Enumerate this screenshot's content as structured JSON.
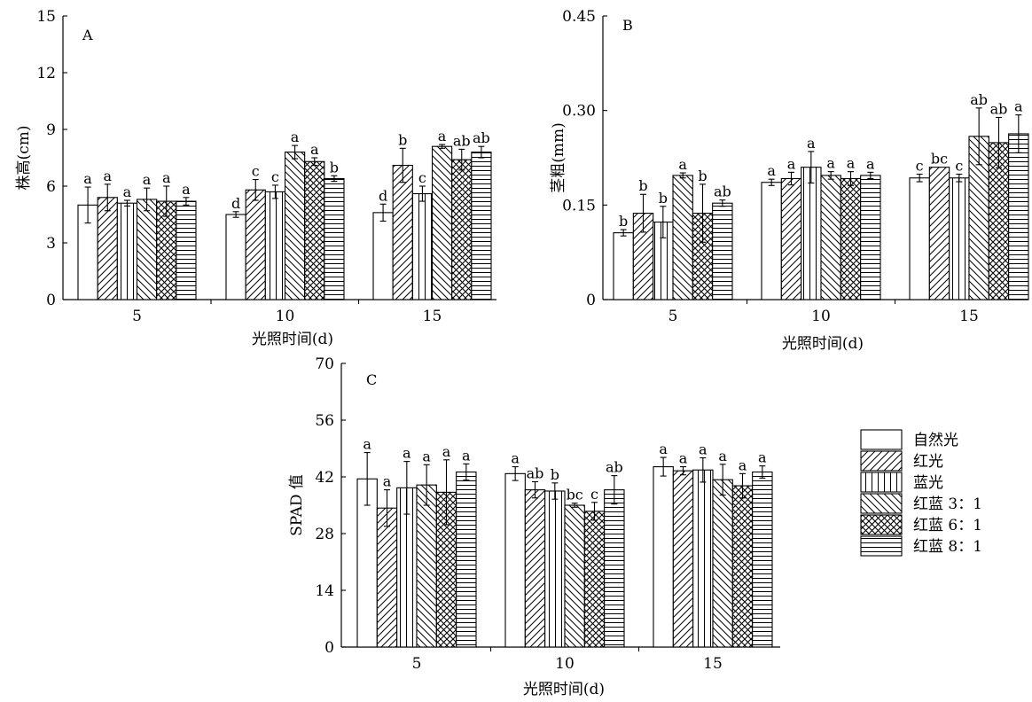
{
  "legend": {
    "items": [
      "自然光",
      "红光",
      "蓝光",
      "红蓝 3：1",
      "红蓝 6：1",
      "红蓝 8：1"
    ],
    "patterns": [
      "blank",
      "diag-right",
      "vertical",
      "diag-left",
      "crosshatch",
      "horizontal"
    ]
  },
  "colors": {
    "ink": "#000000",
    "bar_fill": "#ffffff"
  },
  "chart_data": [
    {
      "panel": "A",
      "type": "bar",
      "xlabel": "光照时间(d)",
      "ylabel": "株高(cm)",
      "ylim": [
        0,
        15
      ],
      "yticks": [
        0,
        3,
        6,
        9,
        12,
        15
      ],
      "categories": [
        "5",
        "10",
        "15"
      ],
      "series": [
        {
          "name": "自然光",
          "values": [
            5.0,
            4.5,
            4.6
          ],
          "errors": [
            0.95,
            0.15,
            0.45
          ],
          "letters": [
            "a",
            "d",
            "d"
          ]
        },
        {
          "name": "红光",
          "values": [
            5.4,
            5.8,
            7.1
          ],
          "errors": [
            0.7,
            0.55,
            0.9
          ],
          "letters": [
            "a",
            "c",
            "b"
          ]
        },
        {
          "name": "蓝光",
          "values": [
            5.1,
            5.7,
            5.6
          ],
          "errors": [
            0.15,
            0.35,
            0.4
          ],
          "letters": [
            "a",
            "c",
            "c"
          ]
        },
        {
          "name": "红蓝 3：1",
          "values": [
            5.3,
            7.8,
            8.1
          ],
          "errors": [
            0.6,
            0.35,
            0.1
          ],
          "letters": [
            "a",
            "a",
            "a"
          ]
        },
        {
          "name": "红蓝 6：1",
          "values": [
            5.2,
            7.3,
            7.4
          ],
          "errors": [
            0.8,
            0.2,
            0.55
          ],
          "letters": [
            "a",
            "a",
            "ab"
          ]
        },
        {
          "name": "红蓝 8：1",
          "values": [
            5.2,
            6.4,
            7.8
          ],
          "errors": [
            0.2,
            0.15,
            0.3
          ],
          "letters": [
            "a",
            "b",
            "ab"
          ]
        }
      ]
    },
    {
      "panel": "B",
      "type": "bar",
      "xlabel": "光照时间(d)",
      "ylabel": "茎粗(mm)",
      "ylim": [
        0,
        0.45
      ],
      "yticks": [
        "0",
        "0.15",
        "0.30",
        "0.45"
      ],
      "categories": [
        "5",
        "10",
        "15"
      ],
      "series": [
        {
          "name": "自然光",
          "values": [
            0.106,
            0.186,
            0.193
          ],
          "errors": [
            0.005,
            0.005,
            0.006
          ],
          "letters": [
            "b",
            "a",
            "c"
          ]
        },
        {
          "name": "红光",
          "values": [
            0.137,
            0.192,
            0.21
          ],
          "errors": [
            0.03,
            0.01,
            0.0
          ],
          "letters": [
            "b",
            "a",
            "bc"
          ]
        },
        {
          "name": "蓝光",
          "values": [
            0.123,
            0.21,
            0.193
          ],
          "errors": [
            0.025,
            0.025,
            0.006
          ],
          "letters": [
            "b",
            "a",
            "c"
          ]
        },
        {
          "name": "红蓝 3：1",
          "values": [
            0.197,
            0.197,
            0.259
          ],
          "errors": [
            0.004,
            0.006,
            0.045
          ],
          "letters": [
            "a",
            "a",
            "ab"
          ]
        },
        {
          "name": "红蓝 6：1",
          "values": [
            0.137,
            0.192,
            0.249
          ],
          "errors": [
            0.046,
            0.011,
            0.04
          ],
          "letters": [
            "b",
            "a",
            "ab"
          ]
        },
        {
          "name": "红蓝 8：1",
          "values": [
            0.153,
            0.197,
            0.263
          ],
          "errors": [
            0.005,
            0.005,
            0.03
          ],
          "letters": [
            "ab",
            "a",
            "a"
          ]
        }
      ]
    },
    {
      "panel": "C",
      "type": "bar",
      "xlabel": "光照时间(d)",
      "ylabel": "SPAD 值",
      "ylim": [
        0,
        70
      ],
      "yticks": [
        0,
        14,
        28,
        42,
        56,
        70
      ],
      "categories": [
        "5",
        "10",
        "15"
      ],
      "series": [
        {
          "name": "自然光",
          "values": [
            41.5,
            42.8,
            44.5
          ],
          "errors": [
            6.5,
            1.7,
            2.3
          ],
          "letters": [
            "a",
            "a",
            "a"
          ]
        },
        {
          "name": "红光",
          "values": [
            34.3,
            38.8,
            43.5
          ],
          "errors": [
            4.5,
            2.0,
            1.0
          ],
          "letters": [
            "a",
            "ab",
            "a"
          ]
        },
        {
          "name": "蓝光",
          "values": [
            39.3,
            38.5,
            43.7
          ],
          "errors": [
            6.5,
            2.0,
            3.0
          ],
          "letters": [
            "a",
            "b",
            "a"
          ]
        },
        {
          "name": "红蓝 3：1",
          "values": [
            40.0,
            35.0,
            41.3
          ],
          "errors": [
            5.0,
            0.5,
            3.8
          ],
          "letters": [
            "a",
            "bc",
            "a"
          ]
        },
        {
          "name": "红蓝 6：1",
          "values": [
            38.2,
            33.5,
            39.8
          ],
          "errors": [
            8.0,
            2.2,
            3.0
          ],
          "letters": [
            "a",
            "c",
            "a"
          ]
        },
        {
          "name": "红蓝 8：1",
          "values": [
            43.2,
            38.8,
            43.2
          ],
          "errors": [
            2.0,
            3.5,
            1.5
          ],
          "letters": [
            "a",
            "ab",
            "a"
          ]
        }
      ]
    }
  ]
}
